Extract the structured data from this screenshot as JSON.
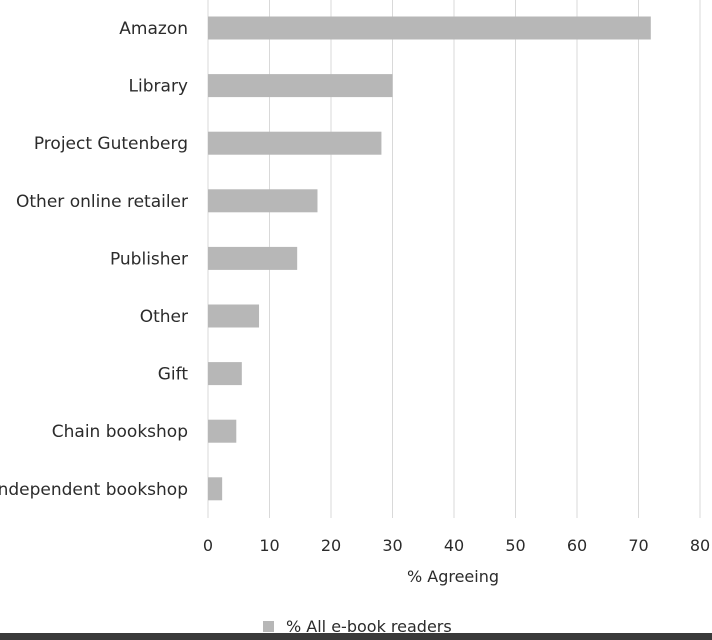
{
  "chart_data": {
    "type": "bar",
    "orientation": "horizontal",
    "categories": [
      "Amazon",
      "Library",
      "Project Gutenberg",
      "Other online retailer",
      "Publisher",
      "Other",
      "Gift",
      "Chain bookshop",
      "Independent bookshop"
    ],
    "series": [
      {
        "name": "% All e-book readers",
        "values": [
          72,
          30,
          28.2,
          17.8,
          14.5,
          8.3,
          5.5,
          4.6,
          2.3
        ]
      }
    ],
    "xlabel": "% Agreeing",
    "xlim": [
      0,
      80
    ],
    "xticks": [
      0,
      10,
      20,
      30,
      40,
      50,
      60,
      70,
      80
    ],
    "grid": true,
    "legend": "bottom",
    "colors": {
      "bar": "#b7b7b7",
      "grid": "#d9d9d9",
      "text": "#2b2b2b"
    }
  }
}
